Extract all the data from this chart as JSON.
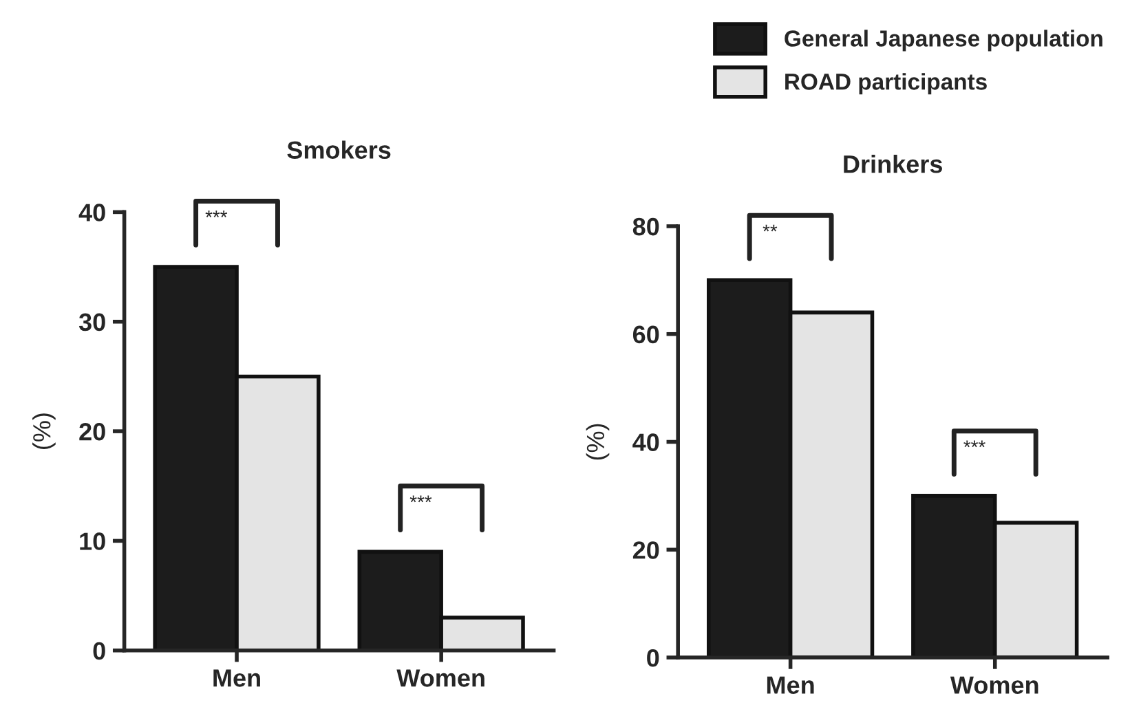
{
  "chart_data": [
    {
      "type": "bar",
      "title": "Smokers",
      "ylabel": "(%)",
      "categories": [
        "Men",
        "Women"
      ],
      "ylim": [
        0,
        40
      ],
      "yticks": [
        0,
        10,
        20,
        30,
        40
      ],
      "grid": false,
      "legend": false,
      "series": [
        {
          "color": "#1c1c1c",
          "values": [
            35,
            9
          ]
        },
        {
          "color": "#e4e4e4",
          "values": [
            25,
            3
          ]
        }
      ],
      "annotations": [
        "***",
        "***"
      ]
    },
    {
      "type": "bar",
      "title": "Drinkers",
      "ylabel": "(%)",
      "categories": [
        "Men",
        "Women"
      ],
      "ylim": [
        0,
        80
      ],
      "yticks": [
        0,
        20,
        40,
        60,
        80
      ],
      "grid": false,
      "legend": "top right",
      "series": [
        {
          "name": "General Japanese population",
          "color": "#1c1c1c",
          "values": [
            70,
            30
          ]
        },
        {
          "name": "ROAD participants",
          "color": "#e4e4e4",
          "values": [
            64,
            25
          ]
        }
      ],
      "annotations": [
        "**",
        "***"
      ]
    }
  ]
}
